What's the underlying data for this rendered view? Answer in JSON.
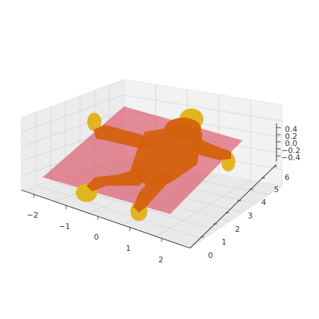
{
  "chart_data": {
    "type": "surface3d",
    "title": "",
    "xlabel": "",
    "ylabel": "",
    "zlabel": "",
    "x_ticks": [
      "−2",
      "−1",
      "0",
      "1",
      "2"
    ],
    "y_ticks": [
      "0",
      "1",
      "2",
      "3",
      "4",
      "5",
      "6"
    ],
    "z_ticks": [
      "0.4",
      "0.2",
      "0.0",
      "−0.2",
      "−0.4"
    ],
    "xlim": [
      -2.5,
      2.5
    ],
    "ylim": [
      -0.5,
      6.5
    ],
    "zlim": [
      -0.6,
      0.6
    ],
    "grid": true,
    "colors": {
      "pane": "#f2f2f2",
      "plane": "#d9485a",
      "figure_light": "#e0b521",
      "figure_dark": "#d2600a"
    },
    "layers": [
      {
        "shape": "flat plane at z = 0",
        "color": "#d9485a",
        "opacity": 0.6
      },
      {
        "shape": "figure surface (body outline) lying on plane",
        "color": "#e0b521"
      }
    ]
  }
}
